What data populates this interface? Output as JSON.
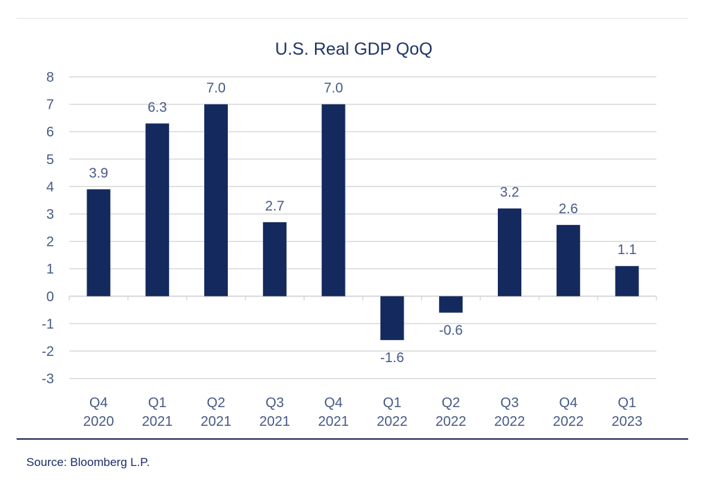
{
  "chart_data": {
    "type": "bar",
    "title": "U.S. Real GDP QoQ",
    "xlabel": "",
    "ylabel": "",
    "categories": [
      [
        "Q4",
        "2020"
      ],
      [
        "Q1",
        "2021"
      ],
      [
        "Q2",
        "2021"
      ],
      [
        "Q3",
        "2021"
      ],
      [
        "Q4",
        "2021"
      ],
      [
        "Q1",
        "2022"
      ],
      [
        "Q2",
        "2022"
      ],
      [
        "Q3",
        "2022"
      ],
      [
        "Q4",
        "2022"
      ],
      [
        "Q1",
        "2023"
      ]
    ],
    "values": [
      3.9,
      6.3,
      7.0,
      2.7,
      7.0,
      -1.6,
      -0.6,
      3.2,
      2.6,
      1.1
    ],
    "data_labels": [
      "3.9",
      "6.3",
      "7.0",
      "2.7",
      "7.0",
      "-1.6",
      "-0.6",
      "3.2",
      "2.6",
      "1.1"
    ],
    "yticks": [
      "8",
      "7",
      "6",
      "5",
      "4",
      "3",
      "2",
      "1",
      "0",
      "-1",
      "-2",
      "-3"
    ],
    "ylim": [
      -3,
      8
    ],
    "grid": true,
    "legend": "none",
    "colors": {
      "bar": "#14295e",
      "grid": "#d9d9d9",
      "text": "#475a85",
      "title": "#1f3566"
    }
  },
  "source": "Source: Bloomberg L.P."
}
